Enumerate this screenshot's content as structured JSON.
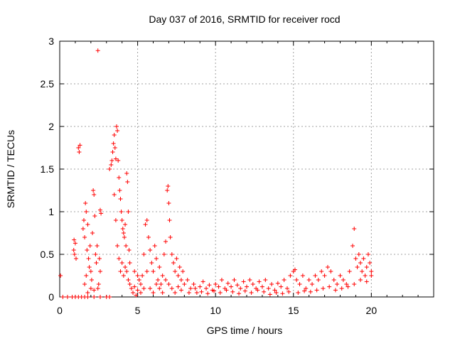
{
  "chart_data": {
    "type": "scatter",
    "title": "Day 037 of 2016, SRMTID for receiver rocd",
    "xlabel": "GPS time / hours",
    "ylabel": "SRMTID / TECUs",
    "xlim": [
      0,
      24
    ],
    "ylim": [
      0,
      3
    ],
    "xticks": [
      0,
      5,
      10,
      15,
      20
    ],
    "yticks": [
      0,
      0.5,
      1,
      1.5,
      2,
      2.5,
      3
    ],
    "xtick_labels": [
      "0",
      "5",
      "10",
      "15",
      "20"
    ],
    "ytick_labels": [
      "0",
      "0.5",
      "1",
      "1.5",
      "2",
      "2.5",
      "3"
    ],
    "grid": true,
    "marker": "plus",
    "color": "#ff0000",
    "series": [
      {
        "name": "SRMTID",
        "points": [
          [
            0.05,
            0.25
          ],
          [
            0.2,
            0.0
          ],
          [
            0.5,
            0.0
          ],
          [
            0.8,
            0.0
          ],
          [
            1.0,
            0.0
          ],
          [
            1.2,
            0.0
          ],
          [
            1.4,
            0.0
          ],
          [
            1.6,
            0.0
          ],
          [
            1.8,
            0.0
          ],
          [
            2.2,
            0.0
          ],
          [
            2.6,
            0.0
          ],
          [
            3.0,
            0.0
          ],
          [
            3.2,
            0.0
          ],
          [
            0.9,
            0.55
          ],
          [
            0.95,
            0.5
          ],
          [
            1.0,
            0.63
          ],
          [
            1.05,
            0.45
          ],
          [
            0.92,
            0.67
          ],
          [
            1.2,
            1.75
          ],
          [
            1.25,
            1.7
          ],
          [
            1.3,
            1.78
          ],
          [
            1.5,
            0.8
          ],
          [
            1.55,
            0.9
          ],
          [
            1.6,
            0.7
          ],
          [
            1.65,
            1.1
          ],
          [
            1.7,
            1.0
          ],
          [
            1.75,
            0.55
          ],
          [
            1.8,
            0.85
          ],
          [
            1.85,
            0.45
          ],
          [
            1.9,
            0.35
          ],
          [
            1.95,
            0.6
          ],
          [
            2.0,
            0.3
          ],
          [
            2.05,
            0.2
          ],
          [
            2.1,
            0.75
          ],
          [
            2.15,
            1.25
          ],
          [
            2.2,
            1.2
          ],
          [
            2.25,
            0.95
          ],
          [
            2.3,
            0.5
          ],
          [
            2.35,
            0.4
          ],
          [
            2.4,
            0.6
          ],
          [
            2.45,
            0.1
          ],
          [
            2.5,
            0.15
          ],
          [
            2.55,
            0.45
          ],
          [
            2.6,
            0.3
          ],
          [
            1.6,
            0.15
          ],
          [
            1.7,
            0.25
          ],
          [
            1.8,
            0.05
          ],
          [
            2.0,
            0.1
          ],
          [
            2.2,
            0.08
          ],
          [
            2.45,
            2.89
          ],
          [
            2.6,
            1.02
          ],
          [
            2.65,
            0.98
          ],
          [
            3.2,
            1.5
          ],
          [
            3.3,
            1.55
          ],
          [
            3.35,
            1.6
          ],
          [
            3.4,
            1.7
          ],
          [
            3.45,
            1.8
          ],
          [
            3.5,
            1.9
          ],
          [
            3.55,
            1.75
          ],
          [
            3.6,
            1.62
          ],
          [
            3.65,
            2.0
          ],
          [
            3.7,
            1.95
          ],
          [
            3.75,
            1.6
          ],
          [
            3.8,
            1.4
          ],
          [
            3.85,
            1.25
          ],
          [
            3.9,
            1.15
          ],
          [
            3.95,
            1.0
          ],
          [
            4.0,
            0.9
          ],
          [
            4.05,
            0.8
          ],
          [
            4.1,
            0.75
          ],
          [
            4.15,
            0.7
          ],
          [
            4.2,
            0.85
          ],
          [
            4.25,
            0.6
          ],
          [
            4.3,
            1.45
          ],
          [
            4.35,
            1.35
          ],
          [
            4.4,
            1.0
          ],
          [
            4.45,
            0.55
          ],
          [
            4.5,
            0.4
          ],
          [
            3.5,
            1.2
          ],
          [
            3.6,
            0.9
          ],
          [
            3.7,
            0.6
          ],
          [
            3.8,
            0.45
          ],
          [
            3.9,
            0.3
          ],
          [
            4.0,
            0.4
          ],
          [
            4.1,
            0.25
          ],
          [
            4.2,
            0.35
          ],
          [
            4.3,
            0.3
          ],
          [
            4.4,
            0.2
          ],
          [
            4.5,
            0.15
          ],
          [
            4.6,
            0.1
          ],
          [
            4.7,
            0.05
          ],
          [
            4.8,
            0.12
          ],
          [
            4.9,
            0.02
          ],
          [
            5.0,
            0.08
          ],
          [
            5.1,
            0.2
          ],
          [
            5.2,
            0.15
          ],
          [
            5.3,
            0.25
          ],
          [
            5.4,
            0.5
          ],
          [
            5.5,
            0.85
          ],
          [
            5.6,
            0.9
          ],
          [
            5.7,
            0.7
          ],
          [
            5.8,
            0.55
          ],
          [
            5.9,
            0.4
          ],
          [
            6.0,
            0.3
          ],
          [
            6.1,
            0.6
          ],
          [
            6.2,
            0.45
          ],
          [
            6.3,
            0.2
          ],
          [
            6.4,
            0.35
          ],
          [
            6.5,
            0.15
          ],
          [
            6.6,
            0.25
          ],
          [
            6.7,
            0.5
          ],
          [
            6.8,
            0.65
          ],
          [
            6.9,
            1.25
          ],
          [
            6.95,
            1.3
          ],
          [
            7.0,
            1.1
          ],
          [
            7.05,
            0.9
          ],
          [
            7.1,
            0.7
          ],
          [
            7.2,
            0.5
          ],
          [
            7.3,
            0.4
          ],
          [
            7.4,
            0.3
          ],
          [
            7.5,
            0.45
          ],
          [
            7.6,
            0.25
          ],
          [
            7.7,
            0.35
          ],
          [
            7.8,
            0.2
          ],
          [
            7.9,
            0.3
          ],
          [
            8.0,
            0.15
          ],
          [
            4.8,
            0.3
          ],
          [
            5.0,
            0.25
          ],
          [
            5.2,
            0.05
          ],
          [
            5.4,
            0.1
          ],
          [
            5.6,
            0.3
          ],
          [
            5.8,
            0.1
          ],
          [
            6.0,
            0.05
          ],
          [
            6.2,
            0.15
          ],
          [
            6.4,
            0.1
          ],
          [
            6.6,
            0.05
          ],
          [
            6.8,
            0.2
          ],
          [
            7.0,
            0.15
          ],
          [
            7.2,
            0.1
          ],
          [
            7.4,
            0.05
          ],
          [
            7.6,
            0.12
          ],
          [
            7.8,
            0.08
          ],
          [
            8.2,
            0.2
          ],
          [
            8.4,
            0.1
          ],
          [
            8.6,
            0.15
          ],
          [
            8.8,
            0.05
          ],
          [
            9.0,
            0.12
          ],
          [
            9.2,
            0.18
          ],
          [
            9.4,
            0.1
          ],
          [
            9.6,
            0.14
          ],
          [
            9.8,
            0.08
          ],
          [
            10.0,
            0.15
          ],
          [
            10.2,
            0.12
          ],
          [
            10.4,
            0.2
          ],
          [
            10.6,
            0.1
          ],
          [
            10.8,
            0.16
          ],
          [
            11.0,
            0.12
          ],
          [
            11.2,
            0.2
          ],
          [
            11.4,
            0.14
          ],
          [
            11.6,
            0.1
          ],
          [
            11.8,
            0.18
          ],
          [
            12.0,
            0.12
          ],
          [
            12.2,
            0.2
          ],
          [
            12.4,
            0.15
          ],
          [
            12.6,
            0.1
          ],
          [
            12.8,
            0.18
          ],
          [
            13.0,
            0.12
          ],
          [
            13.2,
            0.2
          ],
          [
            13.4,
            0.1
          ],
          [
            13.6,
            0.15
          ],
          [
            13.8,
            0.08
          ],
          [
            14.0,
            0.16
          ],
          [
            14.2,
            0.12
          ],
          [
            14.4,
            0.2
          ],
          [
            14.6,
            0.1
          ],
          [
            14.8,
            0.25
          ],
          [
            15.0,
            0.3
          ],
          [
            15.1,
            0.32
          ],
          [
            15.2,
            0.2
          ],
          [
            15.4,
            0.15
          ],
          [
            15.6,
            0.25
          ],
          [
            15.8,
            0.1
          ],
          [
            16.0,
            0.2
          ],
          [
            16.2,
            0.15
          ],
          [
            16.4,
            0.25
          ],
          [
            16.6,
            0.2
          ],
          [
            16.8,
            0.3
          ],
          [
            17.0,
            0.25
          ],
          [
            17.2,
            0.35
          ],
          [
            17.4,
            0.3
          ],
          [
            17.6,
            0.2
          ],
          [
            17.8,
            0.15
          ],
          [
            18.0,
            0.25
          ],
          [
            18.2,
            0.2
          ],
          [
            18.4,
            0.15
          ],
          [
            18.6,
            0.3
          ],
          [
            18.8,
            0.6
          ],
          [
            18.9,
            0.8
          ],
          [
            19.0,
            0.45
          ],
          [
            19.1,
            0.35
          ],
          [
            19.2,
            0.5
          ],
          [
            19.3,
            0.4
          ],
          [
            19.4,
            0.3
          ],
          [
            19.5,
            0.45
          ],
          [
            19.6,
            0.25
          ],
          [
            19.7,
            0.35
          ],
          [
            19.8,
            0.5
          ],
          [
            19.9,
            0.4
          ],
          [
            20.0,
            0.3
          ],
          [
            8.3,
            0.05
          ],
          [
            8.7,
            0.1
          ],
          [
            9.1,
            0.06
          ],
          [
            9.5,
            0.04
          ],
          [
            9.9,
            0.07
          ],
          [
            10.3,
            0.05
          ],
          [
            10.7,
            0.08
          ],
          [
            11.1,
            0.06
          ],
          [
            11.5,
            0.04
          ],
          [
            11.9,
            0.07
          ],
          [
            12.3,
            0.05
          ],
          [
            12.7,
            0.08
          ],
          [
            13.1,
            0.06
          ],
          [
            13.5,
            0.03
          ],
          [
            13.9,
            0.05
          ],
          [
            14.3,
            0.04
          ],
          [
            14.7,
            0.06
          ],
          [
            15.3,
            0.05
          ],
          [
            15.7,
            0.07
          ],
          [
            16.1,
            0.06
          ],
          [
            16.5,
            0.08
          ],
          [
            16.9,
            0.1
          ],
          [
            17.3,
            0.12
          ],
          [
            17.7,
            0.08
          ],
          [
            18.1,
            0.1
          ],
          [
            18.5,
            0.12
          ],
          [
            18.9,
            0.15
          ],
          [
            19.3,
            0.2
          ],
          [
            19.7,
            0.18
          ],
          [
            20.0,
            0.25
          ]
        ]
      }
    ]
  }
}
